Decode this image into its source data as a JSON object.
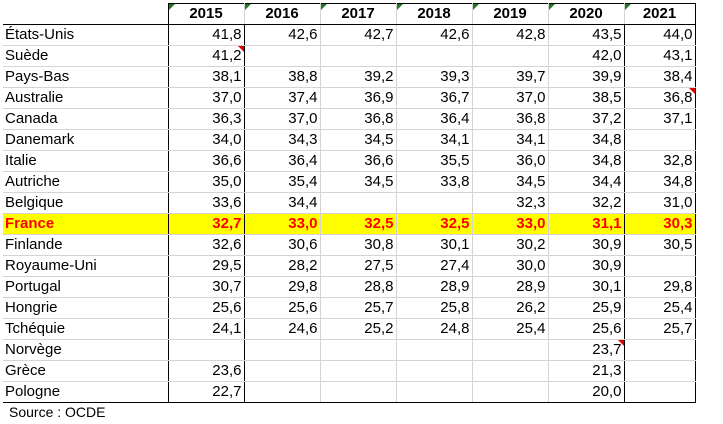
{
  "table": {
    "years": [
      "2015",
      "2016",
      "2017",
      "2018",
      "2019",
      "2020",
      "2021"
    ],
    "highlight_row_index": 9,
    "rows": [
      {
        "country": "États-Unis",
        "values": [
          "41,8",
          "42,6",
          "42,7",
          "42,6",
          "42,8",
          "43,5",
          "44,0"
        ]
      },
      {
        "country": "Suède",
        "values": [
          "41,2",
          "",
          "",
          "",
          "",
          "42,0",
          "43,1"
        ]
      },
      {
        "country": "Pays-Bas",
        "values": [
          "38,1",
          "38,8",
          "39,2",
          "39,3",
          "39,7",
          "39,9",
          "38,4"
        ]
      },
      {
        "country": "Australie",
        "values": [
          "37,0",
          "37,4",
          "36,9",
          "36,7",
          "37,0",
          "38,5",
          "36,8"
        ]
      },
      {
        "country": "Canada",
        "values": [
          "36,3",
          "37,0",
          "36,8",
          "36,4",
          "36,8",
          "37,2",
          "37,1"
        ]
      },
      {
        "country": "Danemark",
        "values": [
          "34,0",
          "34,3",
          "34,5",
          "34,1",
          "34,1",
          "34,8",
          ""
        ]
      },
      {
        "country": "Italie",
        "values": [
          "36,6",
          "36,4",
          "36,6",
          "35,5",
          "36,0",
          "34,8",
          "32,8"
        ]
      },
      {
        "country": "Autriche",
        "values": [
          "35,0",
          "35,4",
          "34,5",
          "33,8",
          "34,5",
          "34,4",
          "34,8"
        ]
      },
      {
        "country": "Belgique",
        "values": [
          "33,6",
          "34,4",
          "",
          "",
          "32,3",
          "32,2",
          "31,0"
        ]
      },
      {
        "country": "France",
        "values": [
          "32,7",
          "33,0",
          "32,5",
          "32,5",
          "33,0",
          "31,1",
          "30,3"
        ]
      },
      {
        "country": "Finlande",
        "values": [
          "32,6",
          "30,6",
          "30,8",
          "30,1",
          "30,2",
          "30,9",
          "30,5"
        ]
      },
      {
        "country": "Royaume-Uni",
        "values": [
          "29,5",
          "28,2",
          "27,5",
          "27,4",
          "30,0",
          "30,9",
          ""
        ]
      },
      {
        "country": "Portugal",
        "values": [
          "30,7",
          "29,8",
          "28,8",
          "28,9",
          "28,9",
          "30,1",
          "29,8"
        ]
      },
      {
        "country": "Hongrie",
        "values": [
          "25,6",
          "25,6",
          "25,7",
          "25,8",
          "26,2",
          "25,9",
          "25,4"
        ]
      },
      {
        "country": "Tchéquie",
        "values": [
          "24,1",
          "24,6",
          "25,2",
          "24,8",
          "25,4",
          "25,6",
          "25,7"
        ]
      },
      {
        "country": "Norvège",
        "values": [
          "",
          "",
          "",
          "",
          "",
          "23,7",
          ""
        ]
      },
      {
        "country": "Grèce",
        "values": [
          "23,6",
          "",
          "",
          "",
          "",
          "21,3",
          ""
        ]
      },
      {
        "country": "Pologne",
        "values": [
          "22,7",
          "",
          "",
          "",
          "",
          "20,0",
          ""
        ]
      }
    ]
  },
  "footer": {
    "source": "Source : OCDE"
  },
  "colors": {
    "highlight_background": "#ffff00",
    "highlight_text": "#ff0000",
    "gridline": "#d4d4d4",
    "green_marker": "#1f7a1f",
    "red_marker": "#e00000"
  }
}
